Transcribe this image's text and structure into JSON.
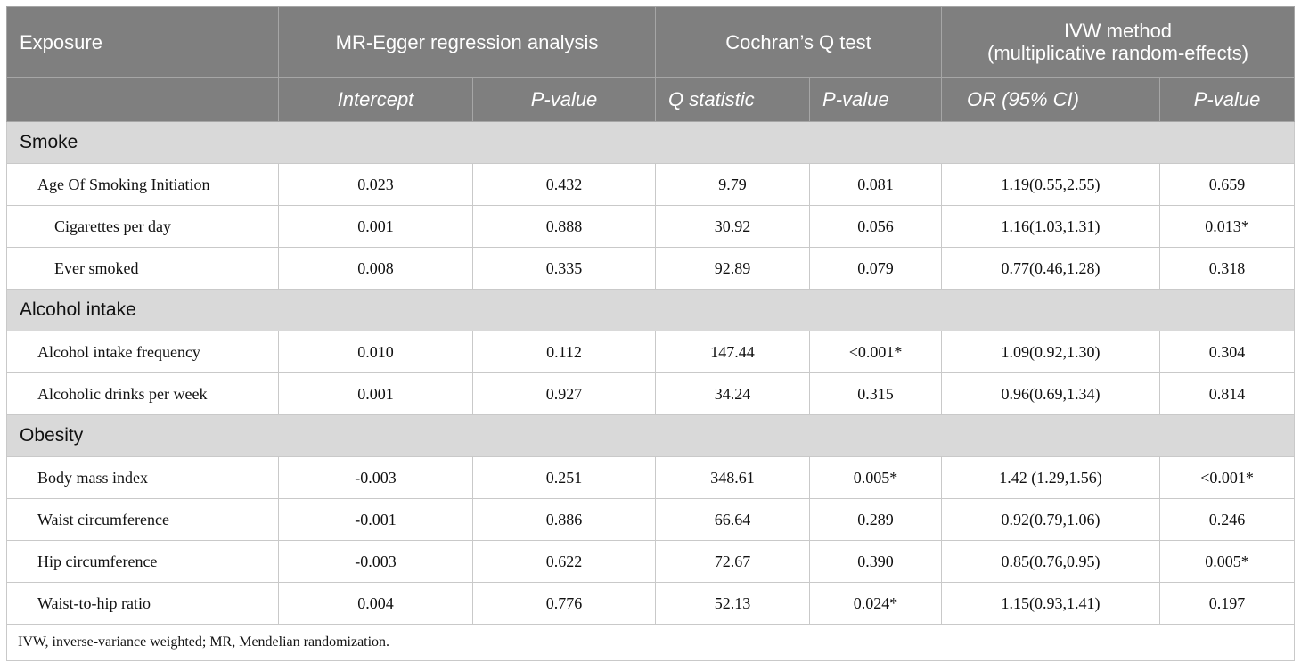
{
  "header": {
    "exposure": "Exposure",
    "mr_egger": "MR-Egger regression analysis",
    "cochran": "Cochran’s Q test",
    "ivw_line1": "IVW method",
    "ivw_line2": "(multiplicative random-effects)",
    "intercept": "Intercept",
    "p_value": "P-value",
    "q_statistic": "Q statistic",
    "or_ci": "OR (95% CI)"
  },
  "groups": [
    {
      "name": "Smoke",
      "rows": [
        {
          "exposure": "Age Of Smoking Initiation",
          "intercept": "0.023",
          "egger_p": "0.432",
          "q": "9.79",
          "q_p": "0.081",
          "or": "1.19(0.55,2.55)",
          "ivw_p": "0.659"
        },
        {
          "exposure": "Cigarettes per day",
          "intercept": "0.001",
          "egger_p": "0.888",
          "q": "30.92",
          "q_p": "0.056",
          "or": "1.16(1.03,1.31)",
          "ivw_p": "0.013*"
        },
        {
          "exposure": "Ever smoked",
          "intercept": "0.008",
          "egger_p": "0.335",
          "q": "92.89",
          "q_p": "0.079",
          "or": "0.77(0.46,1.28)",
          "ivw_p": "0.318"
        }
      ]
    },
    {
      "name": "Alcohol intake",
      "rows": [
        {
          "exposure": "Alcohol intake frequency",
          "intercept": "0.010",
          "egger_p": "0.112",
          "q": "147.44",
          "q_p": "<0.001*",
          "or": "1.09(0.92,1.30)",
          "ivw_p": "0.304"
        },
        {
          "exposure": "Alcoholic drinks per week",
          "intercept": "0.001",
          "egger_p": "0.927",
          "q": "34.24",
          "q_p": "0.315",
          "or": "0.96(0.69,1.34)",
          "ivw_p": "0.814"
        }
      ]
    },
    {
      "name": "Obesity",
      "rows": [
        {
          "exposure": "Body mass index",
          "intercept": "-0.003",
          "egger_p": "0.251",
          "q": "348.61",
          "q_p": "0.005*",
          "or": "1.42 (1.29,1.56)",
          "ivw_p": "<0.001*"
        },
        {
          "exposure": "Waist circumference",
          "intercept": "-0.001",
          "egger_p": "0.886",
          "q": "66.64",
          "q_p": "0.289",
          "or": "0.92(0.79,1.06)",
          "ivw_p": "0.246"
        },
        {
          "exposure": "Hip circumference",
          "intercept": "-0.003",
          "egger_p": "0.622",
          "q": "72.67",
          "q_p": "0.390",
          "or": "0.85(0.76,0.95)",
          "ivw_p": "0.005*"
        },
        {
          "exposure": "Waist-to-hip ratio",
          "intercept": "0.004",
          "egger_p": "0.776",
          "q": "52.13",
          "q_p": "0.024*",
          "or": "1.15(0.93,1.41)",
          "ivw_p": "0.197"
        }
      ]
    }
  ],
  "footnote": "IVW, inverse-variance weighted; MR, Mendelian randomization."
}
